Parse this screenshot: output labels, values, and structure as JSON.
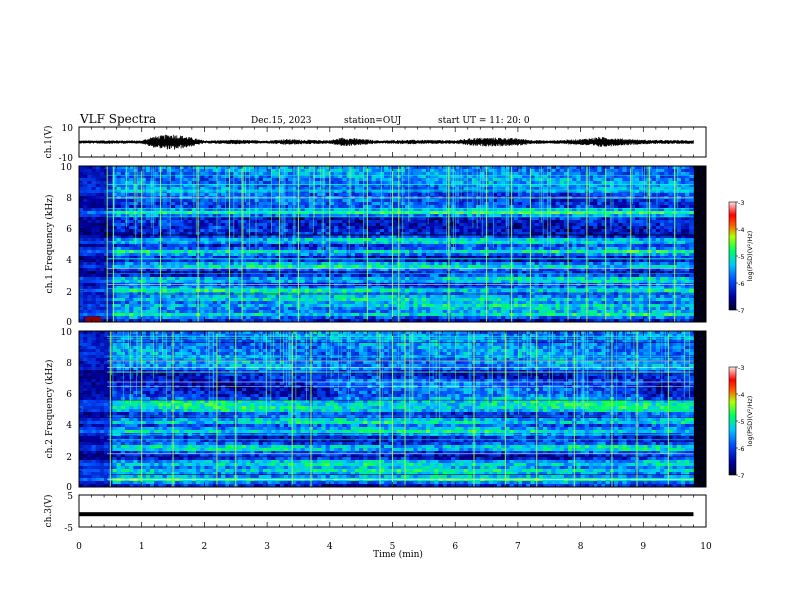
{
  "header": {
    "title": "VLF Spectra",
    "date": "Dec.15, 2023",
    "station": "station=OUJ",
    "start": "start  UT =  11: 20: 0"
  },
  "chart_data": [
    {
      "type": "line",
      "panel": "ch1-waveform",
      "ylabel": "ch.1(V)",
      "ylim": [
        -10,
        10
      ],
      "yticks": [
        "10",
        "-10"
      ],
      "xlim": [
        0,
        10
      ],
      "envelope_description_points": [
        [
          0.0,
          1.0
        ],
        [
          0.5,
          1.2
        ],
        [
          1.0,
          1.0
        ],
        [
          1.15,
          3.5
        ],
        [
          1.5,
          5.5
        ],
        [
          1.75,
          3.5
        ],
        [
          2.0,
          1.0
        ],
        [
          2.5,
          1.5
        ],
        [
          3.0,
          1.0
        ],
        [
          3.3,
          2.0
        ],
        [
          3.6,
          1.5
        ],
        [
          4.0,
          1.2
        ],
        [
          4.2,
          3.0
        ],
        [
          4.4,
          2.5
        ],
        [
          4.8,
          1.0
        ],
        [
          5.2,
          1.5
        ],
        [
          6.0,
          1.2
        ],
        [
          6.3,
          2.8
        ],
        [
          6.7,
          3.0
        ],
        [
          7.0,
          2.5
        ],
        [
          7.2,
          1.5
        ],
        [
          7.5,
          1.0
        ],
        [
          8.0,
          2.0
        ],
        [
          8.3,
          3.5
        ],
        [
          8.6,
          2.5
        ],
        [
          9.0,
          1.5
        ],
        [
          9.4,
          1.3
        ],
        [
          9.8,
          1.2
        ]
      ]
    },
    {
      "type": "heatmap",
      "panel": "ch1-spectrogram",
      "ylabel": "ch.1 Frequency (kHz)",
      "ylim": [
        0,
        10
      ],
      "yticks": [
        "0",
        "2",
        "4",
        "6",
        "8",
        "10"
      ],
      "xlim": [
        0,
        10
      ],
      "data_xmax": 9.8,
      "colorbar": {
        "label": "log(PSD)(V²/Hz)",
        "range": [
          -7,
          -3
        ],
        "ticks": [
          "-3",
          "-4",
          "-5",
          "-6",
          "-7"
        ]
      },
      "bands_khz": [
        0.5,
        1.0,
        1.5,
        2.0,
        2.7,
        3.6,
        4.5,
        5.2,
        7.0
      ],
      "impulses_min": [
        0.45,
        0.55,
        1.0,
        1.3,
        1.9,
        2.4,
        2.6,
        3.2,
        3.5,
        4.0,
        4.6,
        5.0,
        5.1,
        5.9,
        6.5,
        6.9,
        7.2,
        7.8,
        8.1,
        8.4,
        8.8,
        9.1,
        9.5
      ]
    },
    {
      "type": "heatmap",
      "panel": "ch2-spectrogram",
      "ylabel": "ch.2 Frequency (kHz)",
      "ylim": [
        0,
        10
      ],
      "yticks": [
        "0",
        "2",
        "4",
        "6",
        "8",
        "10"
      ],
      "xlim": [
        0,
        10
      ],
      "data_xmax": 9.8,
      "colorbar": {
        "label": "log(PSD)(V²/Hz)",
        "range": [
          -7,
          -3
        ],
        "ticks": [
          "-3",
          "-4",
          "-5",
          "-6",
          "-7"
        ]
      },
      "bands_khz": [
        0.5,
        1.0,
        1.5,
        2.5,
        3.6,
        4.2,
        5.0,
        5.4
      ],
      "impulses_min": [
        0.5,
        1.0,
        1.5,
        2.2,
        2.5,
        3.4,
        3.7,
        4.8,
        5.0,
        5.2,
        6.3,
        6.8,
        7.3,
        7.9,
        8.5,
        8.9,
        9.4
      ]
    },
    {
      "type": "line",
      "panel": "ch3-waveform",
      "ylabel": "ch.3(V)",
      "ylim": [
        -5,
        5
      ],
      "yticks": [
        "5",
        "-5"
      ],
      "xlim": [
        0,
        10
      ],
      "level_v": -1.0,
      "xlabel": "Time (min)",
      "xticks": [
        "0",
        "1",
        "2",
        "3",
        "4",
        "5",
        "6",
        "7",
        "8",
        "9",
        "10"
      ]
    }
  ]
}
